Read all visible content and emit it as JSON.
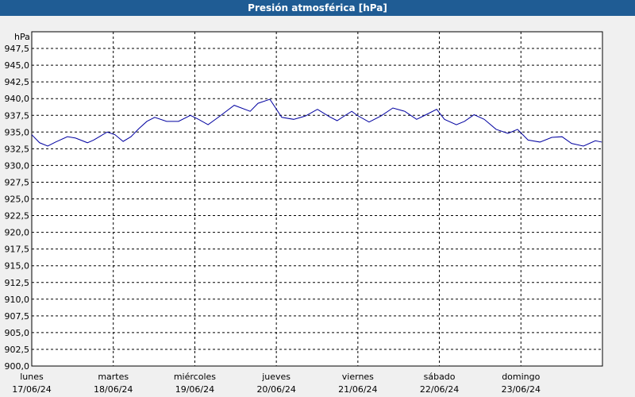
{
  "chart_data": {
    "type": "line",
    "title": "Presión atmosférica [hPa]",
    "y_label": "hPa",
    "x": [
      0,
      2.3,
      4.7,
      7,
      10.5,
      12.9,
      16.4,
      18.2,
      19.9,
      22.2,
      24.5,
      26.9,
      29.2,
      31.5,
      33.9,
      36.2,
      39.7,
      43.2,
      46.7,
      49.1,
      51.9,
      54.9,
      59.6,
      64.3,
      66.6,
      70.1,
      73.6,
      77.1,
      80.6,
      84.1,
      87.6,
      89.9,
      92.3,
      94.2,
      95.8,
      99.3,
      102.8,
      106.3,
      109.8,
      113.3,
      115.7,
      119.2,
      121.5,
      125,
      127.4,
      130.2,
      133.2,
      136.7,
      140.2,
      143,
      146.1,
      149.6,
      153.1,
      156.1,
      158.9,
      162.4,
      165.9,
      167.8
    ],
    "series": [
      {
        "name": "Presión",
        "color": "#0000a0",
        "values": [
          934.6,
          933.4,
          932.9,
          933.5,
          934.3,
          934.1,
          933.4,
          933.8,
          934.3,
          935.0,
          934.6,
          933.6,
          934.3,
          935.5,
          936.6,
          937.2,
          936.6,
          936.6,
          937.5,
          936.9,
          936.1,
          937.2,
          939.0,
          938.1,
          939.3,
          939.9,
          937.2,
          936.9,
          937.4,
          938.4,
          937.3,
          936.7,
          937.5,
          938.1,
          937.5,
          936.5,
          937.4,
          938.6,
          938.1,
          936.9,
          937.5,
          938.4,
          936.9,
          936.1,
          936.6,
          937.6,
          936.9,
          935.4,
          934.8,
          935.4,
          933.8,
          933.5,
          934.2,
          934.3,
          933.3,
          932.9,
          933.7,
          933.5
        ]
      }
    ],
    "xlim": [
      0,
      168
    ],
    "xticks": [
      {
        "value": 0,
        "label": "lunes"
      },
      {
        "value": 24,
        "label": "martes"
      },
      {
        "value": 48,
        "label": "miércoles"
      },
      {
        "value": 72,
        "label": "jueves"
      },
      {
        "value": 96,
        "label": "viernes"
      },
      {
        "value": 120,
        "label": "sábado"
      },
      {
        "value": 144,
        "label": "domingo"
      }
    ],
    "xtick_dates": [
      "17/06/24",
      "18/06/24",
      "19/06/24",
      "20/06/24",
      "21/06/24",
      "22/06/24",
      "23/06/24"
    ],
    "ylim": [
      900,
      950
    ],
    "yticks": [
      {
        "value": 900,
        "label": "900,0"
      },
      {
        "value": 902.5,
        "label": "902,5"
      },
      {
        "value": 905,
        "label": "905,0"
      },
      {
        "value": 907.5,
        "label": "907,5"
      },
      {
        "value": 910,
        "label": "910,0"
      },
      {
        "value": 912.5,
        "label": "912,5"
      },
      {
        "value": 915,
        "label": "915,0"
      },
      {
        "value": 917.5,
        "label": "917,5"
      },
      {
        "value": 920,
        "label": "920,0"
      },
      {
        "value": 922.5,
        "label": "922,5"
      },
      {
        "value": 925,
        "label": "925,0"
      },
      {
        "value": 927.5,
        "label": "927,5"
      },
      {
        "value": 930,
        "label": "930,0"
      },
      {
        "value": 932.5,
        "label": "932,5"
      },
      {
        "value": 935,
        "label": "935,0"
      },
      {
        "value": 937.5,
        "label": "937,5"
      },
      {
        "value": 940,
        "label": "940,0"
      },
      {
        "value": 942.5,
        "label": "942,5"
      },
      {
        "value": 945,
        "label": "945,0"
      },
      {
        "value": 947.5,
        "label": "947,5"
      }
    ],
    "grid": true
  }
}
